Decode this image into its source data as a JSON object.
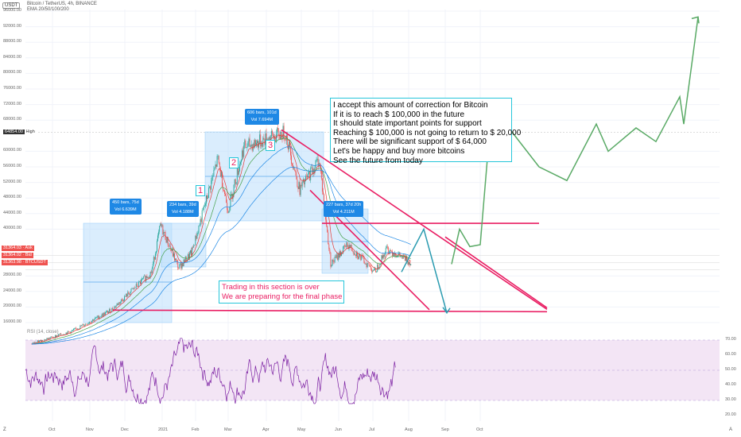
{
  "header": {
    "currency": "USDT",
    "symbol_line": "Bitcoin / TetherUS, 4h, BINANCE",
    "ema_line": "EMA 20/50/100/200"
  },
  "price_axis": [
    "96000.00",
    "92000.00",
    "88000.00",
    "84000.00",
    "80000.00",
    "76000.00",
    "72000.00",
    "68000.00",
    "60000.00",
    "56000.00",
    "52000.00",
    "48000.00",
    "44000.00",
    "40000.00",
    "28000.00",
    "24000.00",
    "20000.00",
    "16000.00"
  ],
  "price_labels": {
    "high_value": "64854.00",
    "high_text": "High",
    "ask_value": "31364.03",
    "ask_text": "Ask",
    "bid_value": "31364.02",
    "bid_text": "Bid",
    "last_value": "31363.98",
    "last_text": "BTCUSDT"
  },
  "rsi": {
    "label": "RSI (14, close)",
    "axis": [
      "70.00",
      "60.00",
      "50.00",
      "40.00",
      "30.00",
      "20.00"
    ]
  },
  "time_axis": [
    "Oct",
    "Nov",
    "Dec",
    "2021",
    "Feb",
    "Mar",
    "Apr",
    "May",
    "Jun",
    "Jul",
    "Aug",
    "Sep",
    "Oct"
  ],
  "corner_left": "Z",
  "corner_right": "A",
  "ranges": [
    {
      "bars": "450 bars, 75d",
      "vol": "Vol 6.639M"
    },
    {
      "bars": "234 bars, 39d",
      "vol": "Vol 4.188M"
    },
    {
      "bars": "606 bars, 101d",
      "vol": "Vol 7.694M"
    },
    {
      "bars": "227 bars, 37d 20h",
      "vol": "Vol 4.211M"
    }
  ],
  "waves": [
    "1",
    "2",
    "3"
  ],
  "note_main": [
    "I accept this amount of correction for Bitcoin",
    "If it is to reach $ 100,000 in the future",
    "It should state important points for support",
    "Reaching $ 100,000 is not going to return to $ 20,000",
    "There will be significant support of $ 64,000",
    "Let's be happy and buy more bitcoins",
    "See the future from today"
  ],
  "note_secondary": [
    "Trading in this section is over",
    "We are preparing for the final phase"
  ],
  "colors": {
    "up": "#26a69a",
    "down": "#ef5350",
    "ema20": "#e53935",
    "ema50": "#43a047",
    "ema100": "#1e88e5",
    "ema200": "#1e88e5",
    "trendline": "#e91e63",
    "forecast_green": "#5aaa66",
    "forecast_blue": "#2a9bb0",
    "range_fill": "#bbdefb",
    "rsi": "#7b1fa2",
    "rsi_band": "#f3e5f5"
  },
  "chart_data": {
    "type": "line",
    "title": "Bitcoin / TetherUS, 4h, BINANCE",
    "x_categories": [
      "Oct",
      "Nov",
      "Dec",
      "2021",
      "Feb",
      "Mar",
      "Apr",
      "May",
      "Jun",
      "Jul",
      "Aug",
      "Sep",
      "Oct"
    ],
    "ylim": [
      15000,
      98000
    ],
    "price_series": {
      "name": "BTCUSDT",
      "points": [
        [
          "Oct 2020",
          10600
        ],
        [
          "Nov 2020",
          13800
        ],
        [
          "Dec 2020",
          19200
        ],
        [
          "Jan 2021",
          29000
        ],
        [
          "Jan 8 2021",
          41000
        ],
        [
          "Jan 22 2021",
          30000
        ],
        [
          "Feb 2021",
          34000
        ],
        [
          "Feb 21 2021",
          58000
        ],
        [
          "Mar 2021",
          45000
        ],
        [
          "Mar 13 2021",
          61000
        ],
        [
          "Apr 14 2021",
          64854
        ],
        [
          "Apr 25 2021",
          50000
        ],
        [
          "May 10 2021",
          58000
        ],
        [
          "May 19 2021",
          31000
        ],
        [
          "Jun 2021",
          36000
        ],
        [
          "Jun 22 2021",
          29000
        ],
        [
          "Jul 2021",
          35000
        ],
        [
          "Jul 20 2021",
          31364
        ]
      ]
    },
    "forecast_green": [
      31000,
      41000,
      29000,
      31000,
      40000,
      35500,
      36000,
      63000,
      66000,
      56000,
      52500,
      67000,
      60000,
      66000,
      62500,
      74000,
      67000,
      94500
    ],
    "forecast_blue": [
      29000,
      40000,
      18500
    ],
    "support_resistance": [
      {
        "name": "resistance",
        "value": 41500
      },
      {
        "name": "support",
        "value": 19200
      }
    ],
    "annotations": {
      "high": 64854,
      "ask": 31364.03,
      "bid": 31364.02,
      "last": 31363.98
    },
    "rsi": {
      "name": "RSI (14, close)",
      "ylim": [
        20,
        75
      ],
      "bands": [
        30,
        70
      ]
    }
  }
}
